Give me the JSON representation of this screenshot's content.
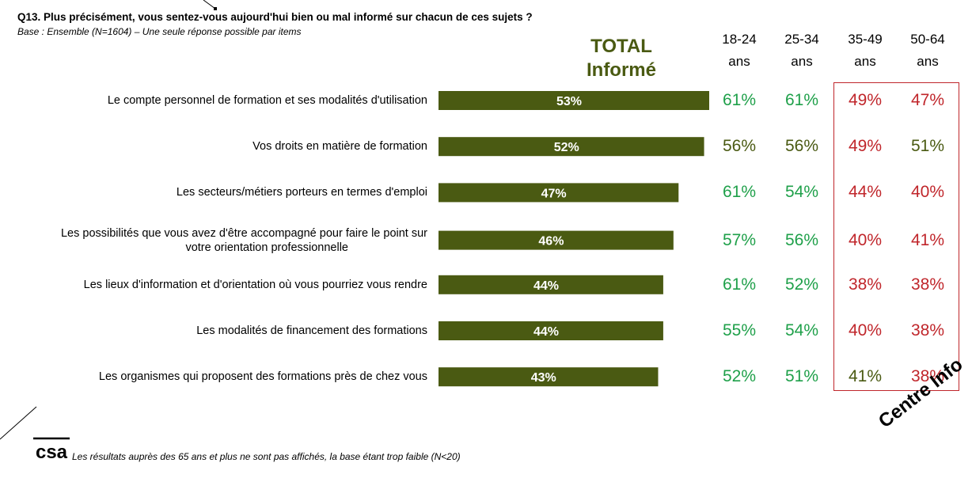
{
  "question": {
    "title": "Q13. Plus précisément, vous sentez-vous aujourd'hui bien ou mal informé sur chacun de ces sujets ?",
    "base": "Base : Ensemble (N=1604) – Une seule réponse possible par items"
  },
  "colors": {
    "bar": "#4a5a12",
    "bar_label": "#ffffff",
    "green": "#1fa04a",
    "olive": "#4a5a12",
    "red": "#c0262b"
  },
  "chart_data": {
    "type": "bar",
    "orientation": "horizontal",
    "title": "TOTAL Informé",
    "title_lines": [
      "TOTAL",
      "Informé"
    ],
    "categories": [
      "Le compte personnel de formation et ses modalités d'utilisation",
      "Vos droits en matière de formation",
      "Les secteurs/métiers porteurs en termes d'emploi",
      "Les possibilités que vous avez d'être accompagné pour faire le point sur votre orientation professionnelle",
      "Les lieux d'information et d'orientation où vous pourriez vous rendre",
      "Les modalités de financement des formations",
      "Les organismes qui proposent des formations près de chez vous"
    ],
    "category_lines": [
      [
        "Le compte personnel de formation et ses modalités d'utilisation"
      ],
      [
        "Vos droits en matière de formation"
      ],
      [
        "Les secteurs/métiers porteurs en termes d'emploi"
      ],
      [
        "Les possibilités que vous avez d'être accompagné pour faire le point sur",
        "votre orientation professionnelle"
      ],
      [
        "Les lieux d'information et d'orientation où vous pourriez vous rendre"
      ],
      [
        "Les modalités de financement des formations"
      ],
      [
        "Les organismes qui proposent des formations près de chez vous"
      ]
    ],
    "values": [
      53,
      52,
      47,
      46,
      44,
      44,
      43
    ],
    "value_labels": [
      "53%",
      "52%",
      "47%",
      "46%",
      "44%",
      "44%",
      "43%"
    ],
    "unit": "%",
    "xlim": [
      0,
      53
    ],
    "grid": false,
    "age_groups": [
      {
        "label_top": "18-24",
        "label_bottom": "ans",
        "values": [
          "61%",
          "56%",
          "61%",
          "57%",
          "61%",
          "55%",
          "52%"
        ],
        "colors": [
          "green",
          "olive",
          "green",
          "green",
          "green",
          "green",
          "green"
        ]
      },
      {
        "label_top": "25-34",
        "label_bottom": "ans",
        "values": [
          "61%",
          "56%",
          "54%",
          "56%",
          "52%",
          "54%",
          "51%"
        ],
        "colors": [
          "green",
          "olive",
          "green",
          "green",
          "green",
          "green",
          "green"
        ]
      },
      {
        "label_top": "35-49",
        "label_bottom": "ans",
        "values": [
          "49%",
          "49%",
          "44%",
          "40%",
          "38%",
          "40%",
          "41%"
        ],
        "colors": [
          "red",
          "red",
          "red",
          "red",
          "red",
          "red",
          "olive"
        ]
      },
      {
        "label_top": "50-64",
        "label_bottom": "ans",
        "values": [
          "47%",
          "51%",
          "40%",
          "41%",
          "38%",
          "38%",
          "38%"
        ],
        "colors": [
          "red",
          "olive",
          "red",
          "red",
          "red",
          "red",
          "red"
        ]
      }
    ]
  },
  "footer": {
    "logo_text": "csa",
    "note": "Les résultats auprès des 65 ans et plus ne sont pas affichés, la base étant trop faible (N<20)",
    "corner_text": "Centre Info"
  }
}
